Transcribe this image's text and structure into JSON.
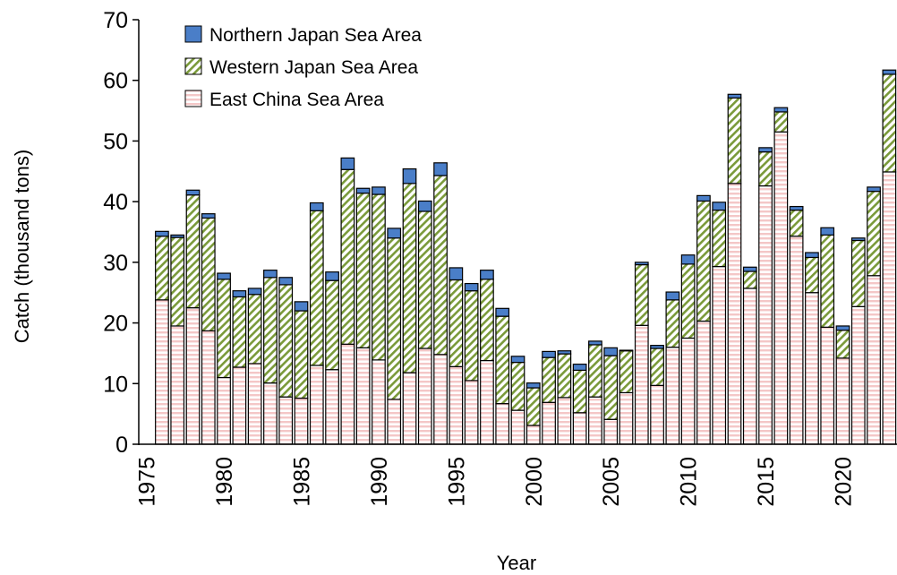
{
  "chart_data": {
    "type": "bar",
    "stacked": true,
    "xlabel": "Year",
    "ylabel": "Catch (thousand tons)",
    "ylim": [
      0,
      70
    ],
    "yticks": [
      0,
      10,
      20,
      30,
      40,
      50,
      60,
      70
    ],
    "xticks": [
      1975,
      1980,
      1985,
      1990,
      1995,
      2000,
      2005,
      2010,
      2015,
      2020
    ],
    "legend_position": "top-left",
    "categories": [
      1976,
      1977,
      1978,
      1979,
      1980,
      1981,
      1982,
      1983,
      1984,
      1985,
      1986,
      1987,
      1988,
      1989,
      1990,
      1991,
      1992,
      1993,
      1994,
      1995,
      1996,
      1997,
      1998,
      1999,
      2000,
      2001,
      2002,
      2003,
      2004,
      2005,
      2006,
      2007,
      2008,
      2009,
      2010,
      2011,
      2012,
      2013,
      2014,
      2015,
      2016,
      2017,
      2018,
      2019,
      2020,
      2021,
      2022,
      2023
    ],
    "series": [
      {
        "name": "East China Sea Area",
        "color": "#f4c7c7",
        "values": [
          23.8,
          19.5,
          22.5,
          18.7,
          11.0,
          12.7,
          13.3,
          10.1,
          7.8,
          7.6,
          13.0,
          12.3,
          16.5,
          15.9,
          13.9,
          7.4,
          11.8,
          15.8,
          14.8,
          12.8,
          10.5,
          13.8,
          6.7,
          5.6,
          3.1,
          6.9,
          7.7,
          5.2,
          7.8,
          4.1,
          8.5,
          19.6,
          9.7,
          16.0,
          17.5,
          20.3,
          29.3,
          43.0,
          25.7,
          42.6,
          51.5,
          34.3,
          25.0,
          19.3,
          14.2,
          22.7,
          27.8,
          44.9
        ]
      },
      {
        "name": "Western Japan Sea Area",
        "color": "#7a9a3a",
        "values": [
          10.5,
          14.6,
          18.6,
          18.6,
          16.2,
          11.6,
          11.4,
          17.4,
          18.5,
          14.4,
          25.5,
          14.7,
          28.8,
          25.5,
          27.3,
          26.6,
          31.2,
          22.6,
          29.5,
          14.3,
          14.8,
          13.4,
          14.4,
          7.9,
          6.2,
          7.4,
          7.2,
          7.0,
          8.6,
          10.5,
          6.9,
          10.0,
          6.1,
          7.8,
          12.2,
          19.8,
          9.3,
          14.1,
          2.8,
          5.6,
          3.3,
          4.3,
          5.8,
          15.2,
          4.6,
          10.9,
          13.9,
          16.1
        ]
      },
      {
        "name": "Northern Japan Sea Area",
        "color": "#4a7ec8",
        "values": [
          0.8,
          0.4,
          0.8,
          0.7,
          1.0,
          1.0,
          1.0,
          1.2,
          1.2,
          1.5,
          1.3,
          1.4,
          1.9,
          0.8,
          1.2,
          1.6,
          2.4,
          1.7,
          2.1,
          2.0,
          1.2,
          1.5,
          1.3,
          1.0,
          0.8,
          1.0,
          0.5,
          1.0,
          0.6,
          1.3,
          0.1,
          0.4,
          0.5,
          1.3,
          1.5,
          0.9,
          1.3,
          0.6,
          0.7,
          0.7,
          0.7,
          0.6,
          0.8,
          1.2,
          0.7,
          0.4,
          0.7,
          0.7
        ]
      }
    ]
  }
}
